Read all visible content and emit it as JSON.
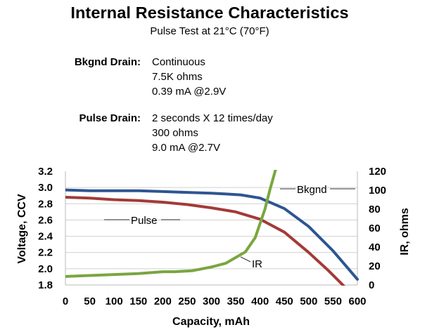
{
  "chart_data": {
    "type": "line",
    "title": "Internal Resistance Characteristics",
    "subtitle": "Pulse Test at 21°C (70°F)",
    "conditions": [
      {
        "label": "Bkgnd Drain:",
        "lines": [
          "Continuous",
          "7.5K ohms",
          "0.39 mA @2.9V"
        ]
      },
      {
        "label": "Pulse Drain:",
        "lines": [
          "2 seconds X 12 times/day",
          "300 ohms",
          "9.0 mA @2.7V"
        ]
      }
    ],
    "xlabel": "Capacity, mAh",
    "ylabel": "Voltage, CCV",
    "y2label": "IR, ohms",
    "xlim": [
      0,
      600
    ],
    "ylim": [
      1.8,
      3.2
    ],
    "y2lim": [
      0,
      120
    ],
    "xticks": [
      "0",
      "50",
      "100",
      "150",
      "200",
      "250",
      "300",
      "350",
      "400",
      "450",
      "500",
      "550",
      "600"
    ],
    "yticks": [
      "1.8",
      "2.0",
      "2.2",
      "2.4",
      "2.6",
      "2.8",
      "3.0",
      "3.2"
    ],
    "y2ticks": [
      "0",
      "20",
      "40",
      "60",
      "80",
      "100",
      "120"
    ],
    "grid": "horizontal",
    "series": [
      {
        "name": "Bkgnd",
        "axis": "left",
        "color": "#2E5591",
        "x": [
          0,
          50,
          100,
          150,
          200,
          250,
          300,
          330,
          360,
          400,
          450,
          500,
          550,
          600
        ],
        "y": [
          2.97,
          2.96,
          2.96,
          2.96,
          2.95,
          2.94,
          2.93,
          2.92,
          2.91,
          2.87,
          2.74,
          2.52,
          2.22,
          1.87
        ]
      },
      {
        "name": "Pulse",
        "axis": "left",
        "color": "#A33A38",
        "x": [
          0,
          50,
          100,
          150,
          200,
          250,
          300,
          350,
          400,
          450,
          500,
          540,
          570,
          595
        ],
        "y": [
          2.88,
          2.87,
          2.85,
          2.84,
          2.82,
          2.79,
          2.75,
          2.7,
          2.61,
          2.45,
          2.2,
          1.98,
          1.8,
          1.62
        ]
      },
      {
        "name": "IR",
        "axis": "right",
        "color": "#79A63F",
        "x": [
          0,
          50,
          100,
          150,
          200,
          225,
          260,
          300,
          330,
          370,
          390,
          410,
          420,
          432
        ],
        "y": [
          9,
          10,
          11,
          12,
          14,
          14,
          15,
          19,
          23,
          35,
          50,
          80,
          100,
          122
        ]
      }
    ]
  }
}
